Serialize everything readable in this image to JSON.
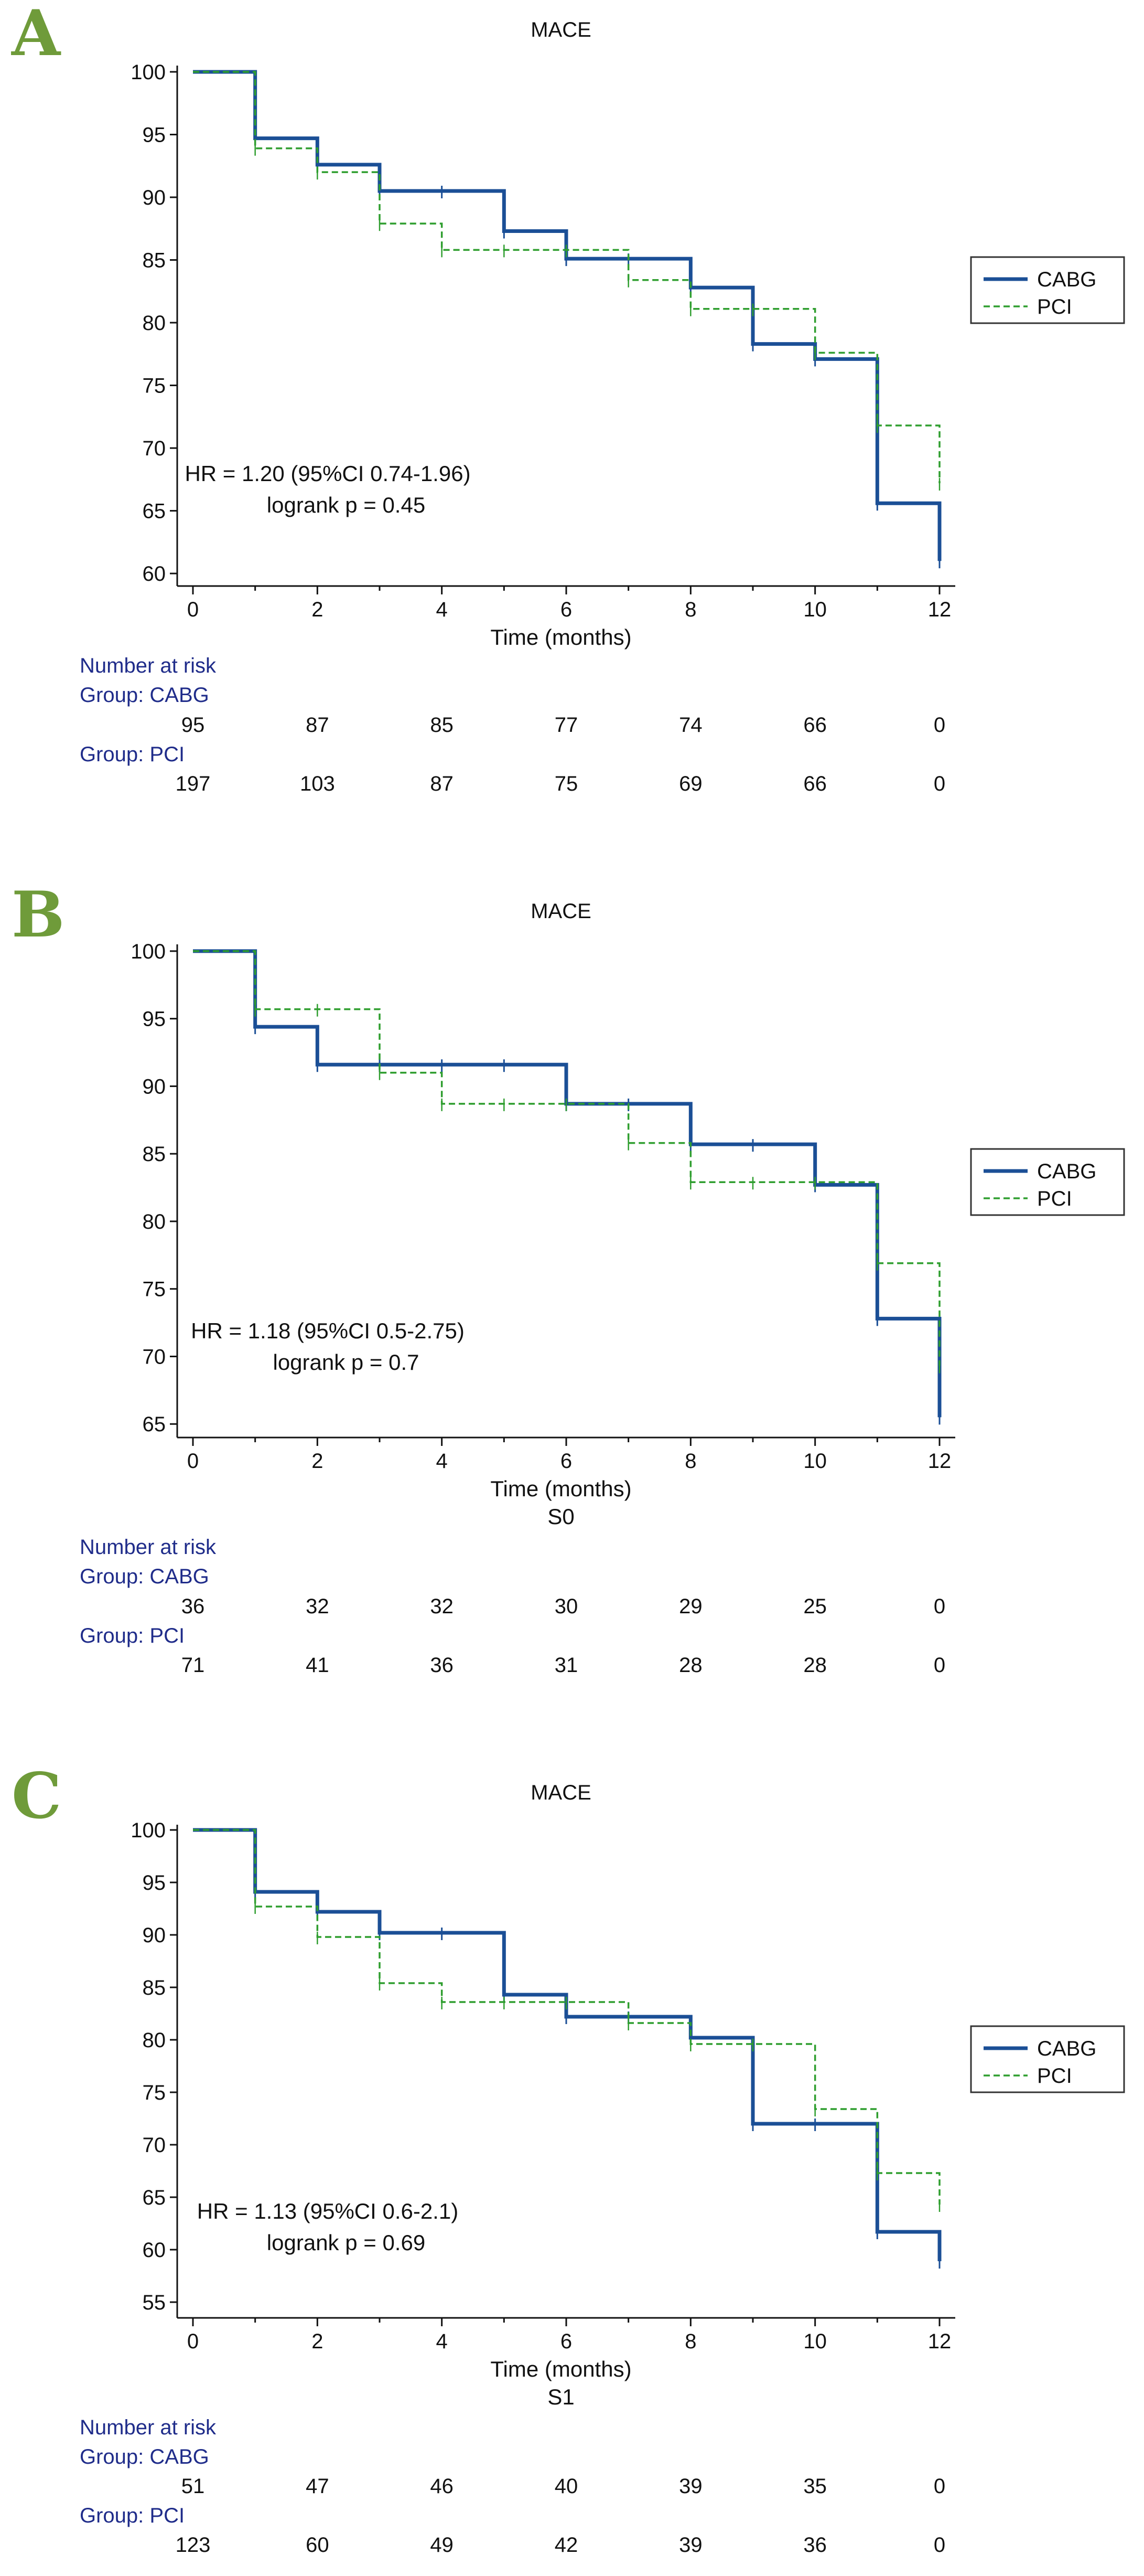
{
  "colors": {
    "cabg": "#1b4f96",
    "pci": "#2f9e2f",
    "panel_letter": "#6f9b3a",
    "risk_header": "#1f2c8a"
  },
  "chart_data": [
    {
      "panel": "A",
      "type": "line",
      "step": true,
      "title": "MACE",
      "subtitle": "",
      "xlabel": "Time (months)",
      "ylabel": "",
      "xlim": [
        0,
        12
      ],
      "ylim": [
        59,
        100.5
      ],
      "xticks": [
        0,
        2,
        4,
        6,
        8,
        10,
        12
      ],
      "yticks": [
        60,
        65,
        70,
        75,
        80,
        85,
        90,
        95,
        100
      ],
      "legend": [
        "CABG",
        "PCI"
      ],
      "legend_position": "right",
      "annotation": [
        "HR = 1.20 (95%CI 0.74-1.96)",
        "logrank  p = 0.45"
      ],
      "series": [
        {
          "name": "CABG",
          "style": "solid",
          "x": [
            0,
            1,
            2,
            3,
            4,
            5,
            6,
            7,
            8,
            9,
            10,
            11,
            12
          ],
          "y": [
            100,
            94.7,
            92.6,
            90.5,
            90.5,
            87.3,
            85.1,
            85.1,
            82.8,
            78.3,
            77.1,
            65.6,
            61.0
          ],
          "end_x": 12,
          "end_y": 61.0
        },
        {
          "name": "PCI",
          "style": "dashed",
          "x": [
            0,
            1,
            2,
            3,
            4,
            5,
            6,
            7,
            8,
            9,
            10,
            11,
            12
          ],
          "y": [
            100,
            93.9,
            92.0,
            87.9,
            85.8,
            85.8,
            85.8,
            83.4,
            81.1,
            81.1,
            77.6,
            71.8,
            67.2
          ],
          "end_x": 12,
          "end_y": 67.2
        }
      ],
      "risk_table": {
        "header": "Number at risk",
        "groups": [
          {
            "label": "Group: CABG",
            "values": [
              95,
              87,
              85,
              77,
              74,
              66,
              0
            ]
          },
          {
            "label": "Group: PCI",
            "values": [
              197,
              103,
              87,
              75,
              69,
              66,
              0
            ]
          }
        ]
      }
    },
    {
      "panel": "B",
      "type": "line",
      "step": true,
      "title": "MACE",
      "subtitle": "S0",
      "xlabel": "Time (months)",
      "ylabel": "",
      "xlim": [
        0,
        12
      ],
      "ylim": [
        64,
        100.5
      ],
      "xticks": [
        0,
        2,
        4,
        6,
        8,
        10,
        12
      ],
      "yticks": [
        65,
        70,
        75,
        80,
        85,
        90,
        95,
        100
      ],
      "legend": [
        "CABG",
        "PCI"
      ],
      "legend_position": "right",
      "annotation": [
        "HR = 1.18 (95%CI 0.5-2.75)",
        "logrank  p = 0.7"
      ],
      "series": [
        {
          "name": "CABG",
          "style": "solid",
          "x": [
            0,
            1,
            2,
            3,
            4,
            5,
            6,
            7,
            8,
            9,
            10,
            11,
            12
          ],
          "y": [
            100,
            94.4,
            91.6,
            91.6,
            91.6,
            91.6,
            88.7,
            88.7,
            85.7,
            85.7,
            82.7,
            72.8,
            65.5
          ],
          "end_x": 12,
          "end_y": 65.5
        },
        {
          "name": "PCI",
          "style": "dashed",
          "x": [
            0,
            1,
            2,
            3,
            4,
            5,
            6,
            7,
            8,
            9,
            10,
            11,
            12
          ],
          "y": [
            100,
            95.7,
            95.7,
            91.0,
            88.7,
            88.7,
            88.7,
            85.8,
            82.9,
            82.9,
            82.9,
            76.9,
            69.3
          ],
          "end_x": 12,
          "end_y": 69.3
        }
      ],
      "risk_table": {
        "header": "Number at risk",
        "groups": [
          {
            "label": "Group: CABG",
            "values": [
              36,
              32,
              32,
              30,
              29,
              25,
              0
            ]
          },
          {
            "label": "Group: PCI",
            "values": [
              71,
              41,
              36,
              31,
              28,
              28,
              0
            ]
          }
        ]
      }
    },
    {
      "panel": "C",
      "type": "line",
      "step": true,
      "title": "MACE",
      "subtitle": "S1",
      "xlabel": "Time (months)",
      "ylabel": "",
      "xlim": [
        0,
        12
      ],
      "ylim": [
        53.5,
        100.5
      ],
      "xticks": [
        0,
        2,
        4,
        6,
        8,
        10,
        12
      ],
      "yticks": [
        55,
        60,
        65,
        70,
        75,
        80,
        85,
        90,
        95,
        100
      ],
      "legend": [
        "CABG",
        "PCI"
      ],
      "legend_position": "right",
      "annotation": [
        "HR = 1.13 (95%CI 0.6-2.1)",
        "logrank  p = 0.69"
      ],
      "series": [
        {
          "name": "CABG",
          "style": "solid",
          "x": [
            0,
            1,
            2,
            3,
            4,
            5,
            6,
            7,
            8,
            9,
            10,
            11,
            12
          ],
          "y": [
            100,
            94.1,
            92.2,
            90.2,
            90.2,
            84.3,
            82.2,
            82.2,
            80.2,
            72.0,
            72.0,
            61.7,
            58.9
          ],
          "end_x": 12,
          "end_y": 58.9
        },
        {
          "name": "PCI",
          "style": "dashed",
          "x": [
            0,
            1,
            2,
            3,
            4,
            5,
            6,
            7,
            8,
            9,
            10,
            11,
            12
          ],
          "y": [
            100,
            92.7,
            89.8,
            85.4,
            83.6,
            83.6,
            83.6,
            81.6,
            79.6,
            79.6,
            73.4,
            67.3,
            64.3
          ],
          "end_x": 12,
          "end_y": 64.3
        }
      ],
      "risk_table": {
        "header": "Number at risk",
        "groups": [
          {
            "label": "Group: CABG",
            "values": [
              51,
              47,
              46,
              40,
              39,
              35,
              0
            ]
          },
          {
            "label": "Group: PCI",
            "values": [
              123,
              60,
              49,
              42,
              39,
              36,
              0
            ]
          }
        ]
      }
    }
  ]
}
